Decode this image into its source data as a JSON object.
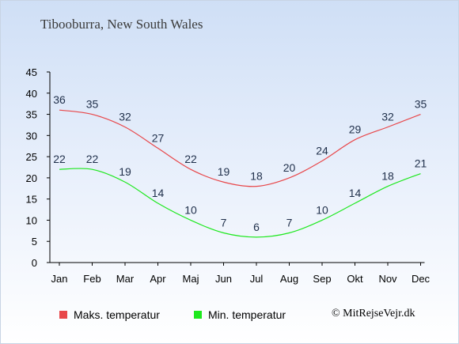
{
  "title": "Tibooburra, New South Wales",
  "copyright": "© MitRejseVejr.dk",
  "chart_data": {
    "type": "line",
    "title": "Tibooburra, New South Wales",
    "categories": [
      "Jan",
      "Feb",
      "Mar",
      "Apr",
      "Maj",
      "Jun",
      "Jul",
      "Aug",
      "Sep",
      "Okt",
      "Nov",
      "Dec"
    ],
    "ylim": [
      0,
      45
    ],
    "yticks": [
      0,
      5,
      10,
      15,
      20,
      25,
      30,
      35,
      40,
      45
    ],
    "grid": false,
    "legend_position": "bottom-left",
    "series": [
      {
        "name": "Maks. temperatur",
        "color": "#e8474a",
        "values": [
          36,
          35,
          32,
          27,
          22,
          19,
          18,
          20,
          24,
          29,
          32,
          35
        ]
      },
      {
        "name": "Min. temperatur",
        "color": "#1ee81e",
        "values": [
          22,
          22,
          19,
          14,
          10,
          7,
          6,
          7,
          10,
          14,
          18,
          21
        ]
      }
    ]
  }
}
